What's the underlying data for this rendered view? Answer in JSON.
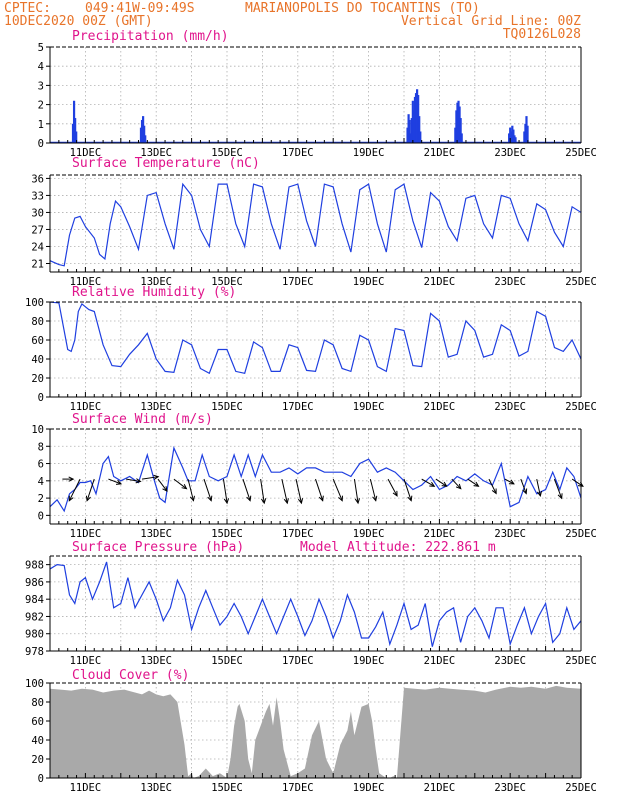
{
  "header": {
    "line1_left": "CPTEC:",
    "coords": "049:41W-09:49S",
    "station": "MARIANOPOLIS DO TOCANTINS (TO)",
    "date": "10DEC2020 00Z (GMT)",
    "grid_note": "Vertical Grid Line: 00Z",
    "model_code": "TQ0126L028"
  },
  "colors": {
    "header": "#e8742a",
    "panel_title": "#e0148c",
    "line": "#1f3fe0",
    "cloud": "#a9a9a9",
    "grid": "#b0b0b0"
  },
  "x_axis": {
    "day_start": 10,
    "day_end": 25,
    "tick_labels": [
      "11DEC",
      "13DEC",
      "15DEC",
      "17DEC",
      "19DEC",
      "21DEC",
      "23DEC",
      "25DEC"
    ]
  },
  "chart_data": [
    {
      "id": "precip",
      "type": "bar",
      "title": "Precipitation (mm/h)",
      "ylim": [
        0,
        5
      ],
      "yticks": [
        "0",
        "1",
        "2",
        "3",
        "4",
        "5"
      ],
      "grid": true,
      "bars": [
        [
          10.65,
          1.0
        ],
        [
          10.68,
          2.2
        ],
        [
          10.71,
          1.3
        ],
        [
          10.74,
          0.6
        ],
        [
          12.57,
          0.8
        ],
        [
          12.6,
          1.2
        ],
        [
          12.63,
          1.4
        ],
        [
          12.66,
          0.9
        ],
        [
          12.69,
          0.4
        ],
        [
          20.1,
          0.8
        ],
        [
          20.13,
          1.5
        ],
        [
          20.16,
          1.2
        ],
        [
          20.19,
          0.5
        ],
        [
          20.22,
          1.3
        ],
        [
          20.25,
          2.2
        ],
        [
          20.28,
          1.7
        ],
        [
          20.31,
          2.4
        ],
        [
          20.34,
          2.6
        ],
        [
          20.37,
          2.8
        ],
        [
          20.4,
          2.5
        ],
        [
          20.43,
          1.4
        ],
        [
          20.46,
          0.6
        ],
        [
          21.45,
          0.8
        ],
        [
          21.48,
          1.7
        ],
        [
          21.51,
          2.1
        ],
        [
          21.54,
          2.2
        ],
        [
          21.57,
          1.9
        ],
        [
          21.6,
          1.3
        ],
        [
          21.63,
          0.5
        ],
        [
          22.97,
          0.5
        ],
        [
          23.0,
          0.8
        ],
        [
          23.03,
          0.6
        ],
        [
          23.06,
          0.9
        ],
        [
          23.09,
          0.7
        ],
        [
          23.12,
          0.4
        ],
        [
          23.15,
          0.3
        ],
        [
          23.4,
          0.6
        ],
        [
          23.43,
          1.0
        ],
        [
          23.46,
          1.4
        ],
        [
          23.49,
          0.9
        ]
      ]
    },
    {
      "id": "temp",
      "type": "line",
      "title": "Surface Temperature (nC)",
      "ylim": [
        19.5,
        36.6
      ],
      "yticks": [
        "21",
        "24",
        "27",
        "30",
        "33",
        "36"
      ],
      "grid": true,
      "x": [
        10.0,
        10.25,
        10.4,
        10.55,
        10.7,
        10.85,
        11.0,
        11.25,
        11.4,
        11.55,
        11.7,
        11.85,
        12.0,
        12.25,
        12.5,
        12.75,
        13.0,
        13.25,
        13.5,
        13.75,
        14.0,
        14.25,
        14.5,
        14.75,
        15.0,
        15.25,
        15.5,
        15.75,
        16.0,
        16.25,
        16.5,
        16.75,
        17.0,
        17.25,
        17.5,
        17.75,
        18.0,
        18.25,
        18.5,
        18.75,
        19.0,
        19.25,
        19.5,
        19.75,
        20.0,
        20.25,
        20.5,
        20.75,
        21.0,
        21.25,
        21.5,
        21.75,
        22.0,
        22.25,
        22.5,
        22.75,
        23.0,
        23.25,
        23.5,
        23.75,
        24.0,
        24.25,
        24.5,
        24.75,
        25.0
      ],
      "y": [
        21.5,
        20.8,
        20.6,
        26.0,
        29.0,
        29.3,
        27.5,
        25.5,
        22.6,
        21.8,
        28.0,
        32.0,
        31.0,
        27.5,
        23.5,
        33.0,
        33.5,
        28.0,
        23.5,
        35.0,
        33.0,
        27.0,
        24.0,
        35.0,
        35.0,
        28.0,
        24.0,
        35.0,
        34.5,
        28.0,
        23.5,
        34.5,
        35.0,
        28.5,
        24.0,
        35.0,
        34.5,
        28.0,
        23.0,
        34.0,
        35.0,
        28.0,
        23.0,
        34.0,
        35.0,
        28.5,
        23.8,
        33.5,
        32.0,
        27.5,
        25.0,
        32.5,
        33.0,
        28.0,
        25.5,
        33.0,
        32.5,
        28.0,
        25.0,
        31.5,
        30.5,
        26.5,
        24.0,
        31.0,
        30.0
      ]
    },
    {
      "id": "rh",
      "type": "line",
      "title": "Relative Humidity (%)",
      "ylim": [
        0,
        100
      ],
      "yticks": [
        "0",
        "20",
        "40",
        "60",
        "80",
        "100"
      ],
      "grid": true,
      "x": [
        10.0,
        10.25,
        10.5,
        10.6,
        10.7,
        10.8,
        10.9,
        11.0,
        11.1,
        11.25,
        11.5,
        11.75,
        12.0,
        12.25,
        12.5,
        12.75,
        13.0,
        13.25,
        13.5,
        13.75,
        14.0,
        14.25,
        14.5,
        14.75,
        15.0,
        15.25,
        15.5,
        15.75,
        16.0,
        16.25,
        16.5,
        16.75,
        17.0,
        17.25,
        17.5,
        17.75,
        18.0,
        18.25,
        18.5,
        18.75,
        19.0,
        19.25,
        19.5,
        19.75,
        20.0,
        20.25,
        20.5,
        20.75,
        21.0,
        21.25,
        21.5,
        21.75,
        22.0,
        22.25,
        22.5,
        22.75,
        23.0,
        23.25,
        23.5,
        23.75,
        24.0,
        24.25,
        24.5,
        24.75,
        25.0
      ],
      "y": [
        100,
        99,
        50,
        48,
        60,
        90,
        98,
        95,
        92,
        90,
        55,
        33,
        32,
        45,
        55,
        67,
        40,
        27,
        26,
        60,
        55,
        30,
        25,
        50,
        50,
        27,
        25,
        58,
        52,
        27,
        27,
        55,
        52,
        28,
        27,
        60,
        55,
        30,
        27,
        65,
        60,
        32,
        27,
        72,
        70,
        33,
        32,
        88,
        80,
        42,
        45,
        80,
        70,
        42,
        45,
        76,
        70,
        43,
        48,
        90,
        85,
        52,
        48,
        60,
        40
      ]
    },
    {
      "id": "wind",
      "type": "line",
      "title": "Surface Wind (m/s)",
      "ylim": [
        -1,
        10
      ],
      "yticks": [
        "0",
        "2",
        "4",
        "6",
        "8",
        "10"
      ],
      "grid": true,
      "x": [
        10.0,
        10.2,
        10.4,
        10.55,
        10.7,
        10.85,
        11.0,
        11.15,
        11.3,
        11.5,
        11.65,
        11.8,
        12.0,
        12.25,
        12.5,
        12.75,
        12.95,
        13.1,
        13.25,
        13.5,
        13.75,
        13.9,
        14.1,
        14.3,
        14.5,
        14.75,
        15.0,
        15.2,
        15.4,
        15.6,
        15.8,
        16.0,
        16.25,
        16.5,
        16.75,
        17.0,
        17.25,
        17.5,
        17.75,
        18.0,
        18.25,
        18.5,
        18.75,
        19.0,
        19.25,
        19.5,
        19.75,
        20.0,
        20.25,
        20.5,
        20.75,
        21.0,
        21.25,
        21.5,
        21.75,
        22.0,
        22.25,
        22.5,
        22.75,
        23.0,
        23.25,
        23.5,
        23.75,
        24.0,
        24.2,
        24.4,
        24.6,
        24.8,
        25.0
      ],
      "y": [
        1.0,
        1.8,
        0.5,
        2.5,
        3.0,
        3.8,
        3.8,
        4.0,
        2.5,
        6.0,
        6.8,
        4.5,
        4.0,
        4.5,
        3.8,
        7.0,
        4.0,
        2.0,
        1.5,
        7.8,
        5.5,
        4.0,
        4.0,
        7.0,
        4.5,
        4.0,
        4.5,
        7.0,
        4.5,
        7.0,
        4.5,
        7.0,
        5.0,
        5.0,
        5.5,
        4.8,
        5.5,
        5.5,
        5.0,
        5.0,
        5.0,
        4.5,
        6.0,
        6.5,
        5.0,
        5.5,
        5.0,
        4.0,
        3.0,
        3.5,
        4.5,
        3.0,
        3.5,
        4.5,
        4.0,
        4.8,
        4.0,
        3.5,
        6.0,
        1.0,
        1.5,
        4.5,
        2.5,
        3.0,
        5.0,
        3.0,
        5.5,
        4.5,
        2.0
      ],
      "arrows": [
        [
          10.35,
          0.6,
          0.0
        ],
        [
          10.85,
          -0.6,
          -0.9
        ],
        [
          11.25,
          -0.4,
          -0.9
        ],
        [
          11.65,
          0.7,
          -0.2
        ],
        [
          12.15,
          0.8,
          -0.1
        ],
        [
          12.6,
          0.9,
          0.1
        ],
        [
          13.05,
          0.5,
          -0.5
        ],
        [
          13.5,
          0.7,
          -0.4
        ],
        [
          13.9,
          0.3,
          -0.9
        ],
        [
          14.35,
          0.4,
          -0.9
        ],
        [
          14.9,
          0.2,
          -1.0
        ],
        [
          15.45,
          0.4,
          -0.9
        ],
        [
          15.95,
          0.2,
          -1.0
        ],
        [
          16.55,
          0.3,
          -1.0
        ],
        [
          16.95,
          0.3,
          -1.0
        ],
        [
          17.5,
          0.4,
          -0.9
        ],
        [
          18.0,
          0.5,
          -0.9
        ],
        [
          18.6,
          0.2,
          -1.0
        ],
        [
          19.05,
          0.3,
          -0.9
        ],
        [
          19.55,
          0.5,
          -0.7
        ],
        [
          20.0,
          0.4,
          -0.9
        ],
        [
          20.5,
          0.7,
          -0.3
        ],
        [
          20.9,
          0.6,
          -0.3
        ],
        [
          21.35,
          0.5,
          -0.4
        ],
        [
          21.8,
          0.6,
          -0.3
        ],
        [
          22.4,
          0.4,
          -0.6
        ],
        [
          22.85,
          0.5,
          -0.2
        ],
        [
          23.3,
          0.3,
          -0.6
        ],
        [
          23.75,
          0.2,
          -0.7
        ],
        [
          24.25,
          0.4,
          -0.8
        ],
        [
          24.75,
          0.6,
          -0.3
        ]
      ]
    },
    {
      "id": "pressure",
      "type": "line",
      "title": "Surface Pressure (hPa)",
      "annotation": "Model Altitude: 222.861 m",
      "ylim": [
        978,
        989
      ],
      "yticks": [
        "978",
        "980",
        "982",
        "984",
        "986",
        "988"
      ],
      "grid": true,
      "x": [
        10.0,
        10.2,
        10.4,
        10.55,
        10.7,
        10.85,
        11.0,
        11.2,
        11.4,
        11.6,
        11.8,
        12.0,
        12.2,
        12.4,
        12.6,
        12.8,
        13.0,
        13.2,
        13.4,
        13.6,
        13.8,
        14.0,
        14.2,
        14.4,
        14.6,
        14.8,
        15.0,
        15.2,
        15.4,
        15.6,
        15.8,
        16.0,
        16.2,
        16.4,
        16.6,
        16.8,
        17.0,
        17.2,
        17.4,
        17.6,
        17.8,
        18.0,
        18.2,
        18.4,
        18.6,
        18.8,
        19.0,
        19.2,
        19.4,
        19.6,
        19.8,
        20.0,
        20.2,
        20.4,
        20.6,
        20.8,
        21.0,
        21.2,
        21.4,
        21.6,
        21.8,
        22.0,
        22.2,
        22.4,
        22.6,
        22.8,
        23.0,
        23.2,
        23.4,
        23.6,
        23.8,
        24.0,
        24.2,
        24.4,
        24.6,
        24.8,
        25.0
      ],
      "y": [
        987.5,
        988.0,
        987.9,
        984.5,
        983.5,
        986.0,
        986.5,
        984.0,
        986.0,
        988.3,
        983.0,
        983.5,
        986.5,
        983.0,
        984.5,
        986.0,
        984.0,
        981.5,
        983.0,
        986.2,
        984.5,
        980.5,
        983.0,
        985.0,
        983.0,
        981.0,
        982.0,
        983.5,
        982.0,
        980.0,
        982.0,
        984.0,
        982.0,
        980.0,
        982.0,
        984.0,
        982.0,
        979.8,
        981.5,
        984.0,
        982.0,
        979.5,
        981.5,
        984.5,
        982.5,
        979.5,
        979.5,
        980.8,
        982.5,
        978.8,
        981.0,
        983.5,
        980.5,
        981.0,
        983.5,
        978.5,
        981.5,
        982.5,
        983.0,
        979.0,
        982.0,
        983.0,
        981.5,
        979.5,
        983.0,
        983.0,
        978.8,
        981.0,
        983.0,
        980.0,
        982.0,
        983.5,
        979.0,
        980.0,
        983.0,
        980.5,
        981.5
      ]
    },
    {
      "id": "cloud",
      "type": "area",
      "title": "Cloud Cover (%)",
      "ylim": [
        0,
        100
      ],
      "yticks": [
        "0",
        "20",
        "40",
        "60",
        "80",
        "100"
      ],
      "grid": true,
      "x": [
        10.0,
        10.3,
        10.6,
        10.9,
        11.2,
        11.5,
        11.8,
        12.1,
        12.4,
        12.6,
        12.8,
        13.0,
        13.2,
        13.4,
        13.6,
        13.8,
        13.9,
        14.0,
        14.05,
        14.2,
        14.4,
        14.6,
        14.8,
        15.0,
        15.1,
        15.2,
        15.3,
        15.35,
        15.5,
        15.6,
        15.7,
        15.8,
        16.0,
        16.1,
        16.2,
        16.3,
        16.4,
        16.5,
        16.6,
        16.8,
        17.0,
        17.2,
        17.4,
        17.6,
        17.8,
        18.0,
        18.2,
        18.4,
        18.5,
        18.6,
        18.8,
        19.0,
        19.1,
        19.2,
        19.3,
        19.5,
        19.6,
        19.7,
        19.8,
        20.0,
        20.3,
        20.6,
        21.0,
        21.3,
        21.6,
        22.0,
        22.3,
        22.6,
        23.0,
        23.3,
        23.6,
        24.0,
        24.3,
        24.6,
        25.0
      ],
      "y": [
        94,
        93,
        92,
        94,
        93,
        90,
        92,
        93,
        90,
        88,
        92,
        88,
        86,
        88,
        80,
        35,
        2,
        5,
        0,
        2,
        10,
        2,
        5,
        0,
        20,
        55,
        75,
        78,
        60,
        20,
        5,
        40,
        60,
        70,
        78,
        55,
        85,
        60,
        30,
        2,
        5,
        10,
        45,
        60,
        20,
        5,
        35,
        50,
        70,
        45,
        75,
        78,
        60,
        30,
        5,
        0,
        0,
        2,
        0,
        95,
        94,
        93,
        95,
        94,
        93,
        92,
        90,
        93,
        96,
        95,
        96,
        94,
        97,
        95,
        94
      ]
    }
  ]
}
